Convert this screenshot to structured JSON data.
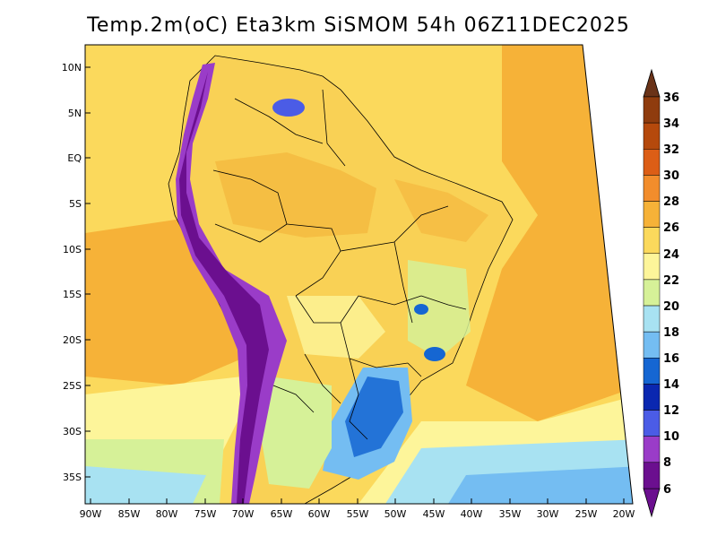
{
  "title": "Temp.2m(oC) Eta3km SiSMOM 54h 06Z11DEC2025",
  "lat_labels": [
    "10N",
    "5N",
    "EQ",
    "5S",
    "10S",
    "15S",
    "20S",
    "25S",
    "30S",
    "35S"
  ],
  "lon_labels": [
    "90W",
    "85W",
    "80W",
    "75W",
    "70W",
    "65W",
    "60W",
    "55W",
    "50W",
    "45W",
    "40W",
    "35W",
    "30W",
    "25W",
    "20W"
  ],
  "colorbar": {
    "levels": [
      "36",
      "34",
      "32",
      "30",
      "28",
      "26",
      "24",
      "22",
      "20",
      "18",
      "16",
      "14",
      "12",
      "10",
      "8",
      "6"
    ],
    "colors": [
      "#6a3318",
      "#8f3c0e",
      "#b5490c",
      "#dc5e16",
      "#f28d2c",
      "#f6b238",
      "#fbd95c",
      "#fdf59a",
      "#d6f198",
      "#a8e2f2",
      "#74bdf2",
      "#1566d2",
      "#0a27b0",
      "#4b5ce6",
      "#9a3cc8",
      "#6b0f8f"
    ]
  },
  "palette": {
    "ocean_warm": "#f6b238",
    "ocean_mid": "#fbd95c",
    "ocean_cool": "#fdf59a",
    "ocean_cold": "#d6f198",
    "ocean_colder": "#a8e2f2",
    "land": "#f9d155",
    "land_warm": "#f3b33a",
    "andes_high": "#6b0f8f",
    "andes_mid": "#9a3cc8",
    "south_cool": "#74bdf2",
    "south_cold": "#1566d2",
    "border": "#000000"
  }
}
